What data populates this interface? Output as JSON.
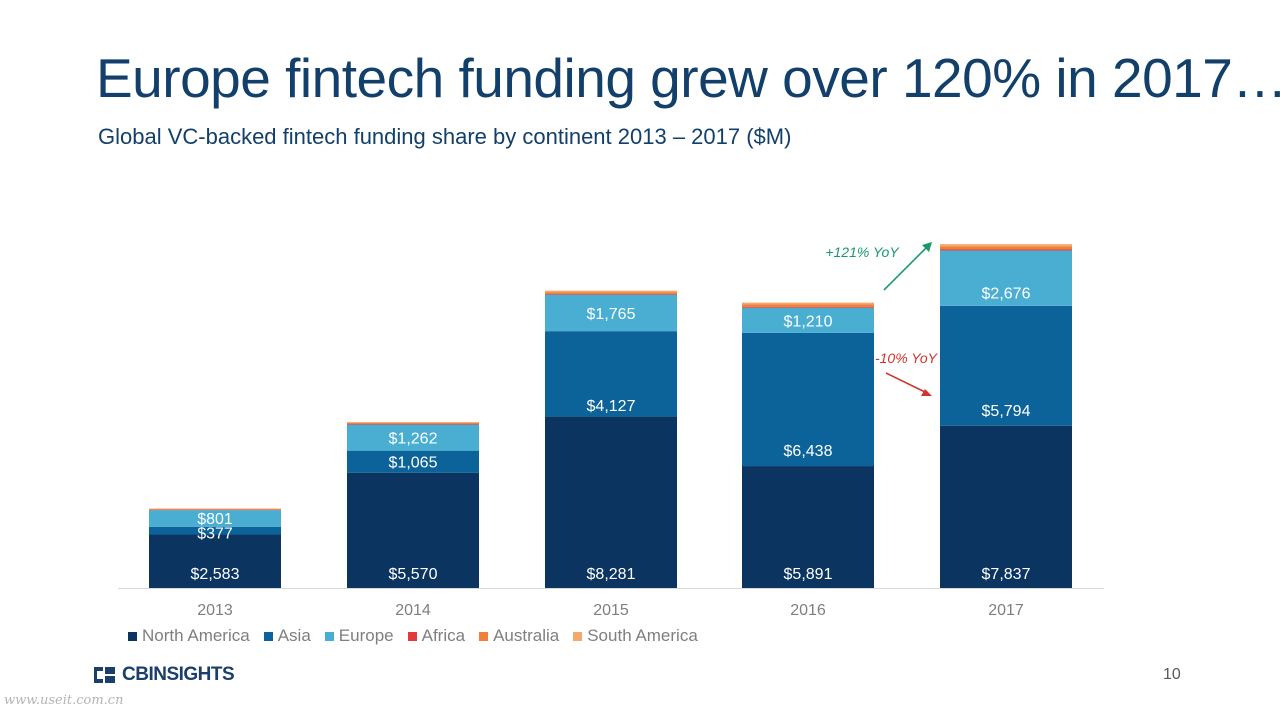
{
  "slide": {
    "title": "Europe fintech funding grew over 120% in 2017…",
    "subtitle": "Global VC-backed fintech funding share by continent 2013 – 2017 ($M)",
    "page_number": "10",
    "brand": "CBINSIGHTS",
    "watermark": "www.useit.com.cn"
  },
  "colors": {
    "North America": "#0b3560",
    "Asia": "#0c6399",
    "Europe": "#4aaed3",
    "Africa": "#e03a3e",
    "Australia": "#f07f3c",
    "South America": "#f5a86a",
    "title": "#133f6b",
    "up_annotation": "#1a9a6a",
    "down_annotation": "#d0352e"
  },
  "chart_data": {
    "type": "bar",
    "stacked": true,
    "categories": [
      "2013",
      "2014",
      "2015",
      "2016",
      "2017"
    ],
    "series": [
      {
        "name": "North America",
        "values": [
          2583,
          5570,
          8281,
          5891,
          7837
        ],
        "labels": [
          "$2,583",
          "$5,570",
          "$8,281",
          "$5,891",
          "$7,837"
        ]
      },
      {
        "name": "Asia",
        "values": [
          377,
          1065,
          4127,
          6438,
          5794
        ],
        "labels": [
          "$377",
          "$1,065",
          "$4,127",
          "$6,438",
          "$5,794"
        ]
      },
      {
        "name": "Europe",
        "values": [
          801,
          1262,
          1765,
          1210,
          2676
        ],
        "labels": [
          "$801",
          "$1,262",
          "$1,765",
          "$1,210",
          "$2,676"
        ]
      },
      {
        "name": "Africa",
        "values": [
          20,
          25,
          30,
          40,
          45
        ],
        "labels": []
      },
      {
        "name": "Australia",
        "values": [
          40,
          60,
          90,
          120,
          150
        ],
        "labels": []
      },
      {
        "name": "South America",
        "values": [
          20,
          40,
          70,
          90,
          110
        ],
        "labels": []
      }
    ],
    "legend_position": "bottom",
    "grid": false,
    "annotations": [
      {
        "text": "+121% YoY",
        "series": "Europe",
        "direction": "up"
      },
      {
        "text": "-10% YoY",
        "series": "Asia",
        "direction": "down"
      }
    ]
  }
}
